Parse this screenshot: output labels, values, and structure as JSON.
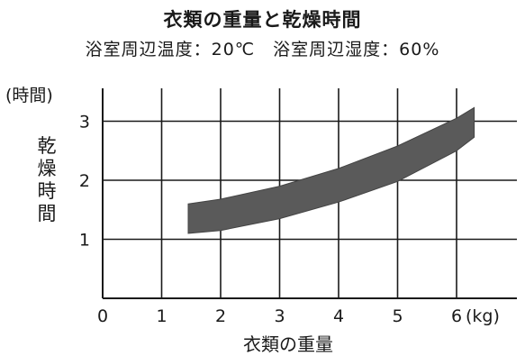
{
  "chart_data": {
    "type": "area",
    "title": "衣類の重量と乾燥時間",
    "subtitle": "浴室周辺温度：20℃　浴室周辺湿度：60%",
    "xlabel": "衣類の重量",
    "ylabel": "乾燥時間",
    "x_unit_label": "(kg)",
    "y_unit_label": "(時間)",
    "x_ticks": [
      "0",
      "1",
      "2",
      "3",
      "4",
      "5",
      "6"
    ],
    "y_ticks": [
      "1",
      "2",
      "3"
    ],
    "xlim": [
      0,
      7
    ],
    "ylim": [
      0,
      3.5
    ],
    "grid": true,
    "band_color": "#5a5a5a",
    "series": [
      {
        "x": [
          1.45,
          2.0,
          3.0,
          4.0,
          5.0,
          6.0,
          6.3
        ],
        "y_upper": [
          1.6,
          1.68,
          1.9,
          2.2,
          2.58,
          3.05,
          3.23
        ],
        "y_lower": [
          1.1,
          1.15,
          1.35,
          1.63,
          1.98,
          2.5,
          2.73
        ]
      }
    ]
  }
}
